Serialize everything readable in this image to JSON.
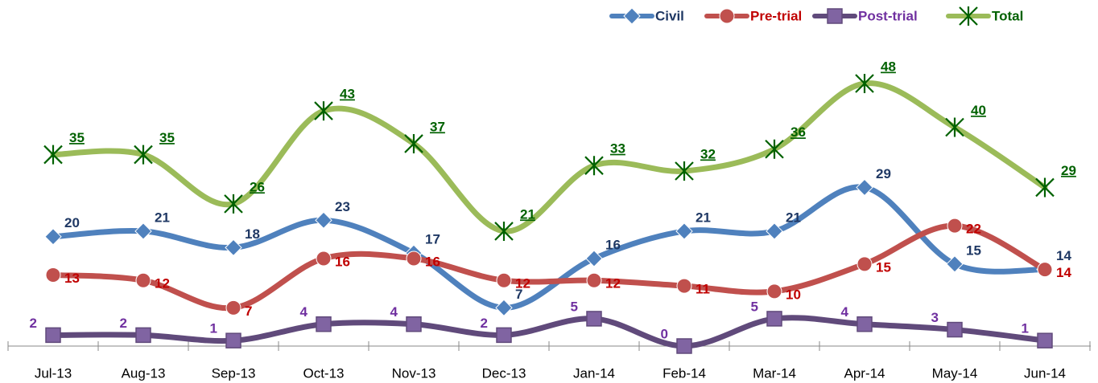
{
  "chart_data": {
    "type": "line",
    "categories": [
      "Jul-13",
      "Aug-13",
      "Sep-13",
      "Oct-13",
      "Nov-13",
      "Dec-13",
      "Jan-14",
      "Feb-14",
      "Mar-14",
      "Apr-14",
      "May-14",
      "Jun-14"
    ],
    "series": [
      {
        "name": "Civil",
        "color": "#4f81bd",
        "values": [
          20,
          21,
          18,
          23,
          17,
          7,
          16,
          21,
          21,
          29,
          15,
          14
        ]
      },
      {
        "name": "Pre-trial",
        "color": "#c0504d",
        "values": [
          13,
          12,
          7,
          16,
          16,
          12,
          12,
          11,
          10,
          15,
          22,
          14
        ]
      },
      {
        "name": "Post-trial",
        "color": "#604a7b",
        "values": [
          2,
          2,
          1,
          4,
          4,
          2,
          5,
          0,
          5,
          4,
          3,
          1
        ]
      },
      {
        "name": "Total",
        "color": "#9bbb59",
        "values": [
          35,
          35,
          26,
          43,
          37,
          21,
          33,
          32,
          36,
          48,
          40,
          29
        ]
      }
    ],
    "legend": "top-right"
  }
}
